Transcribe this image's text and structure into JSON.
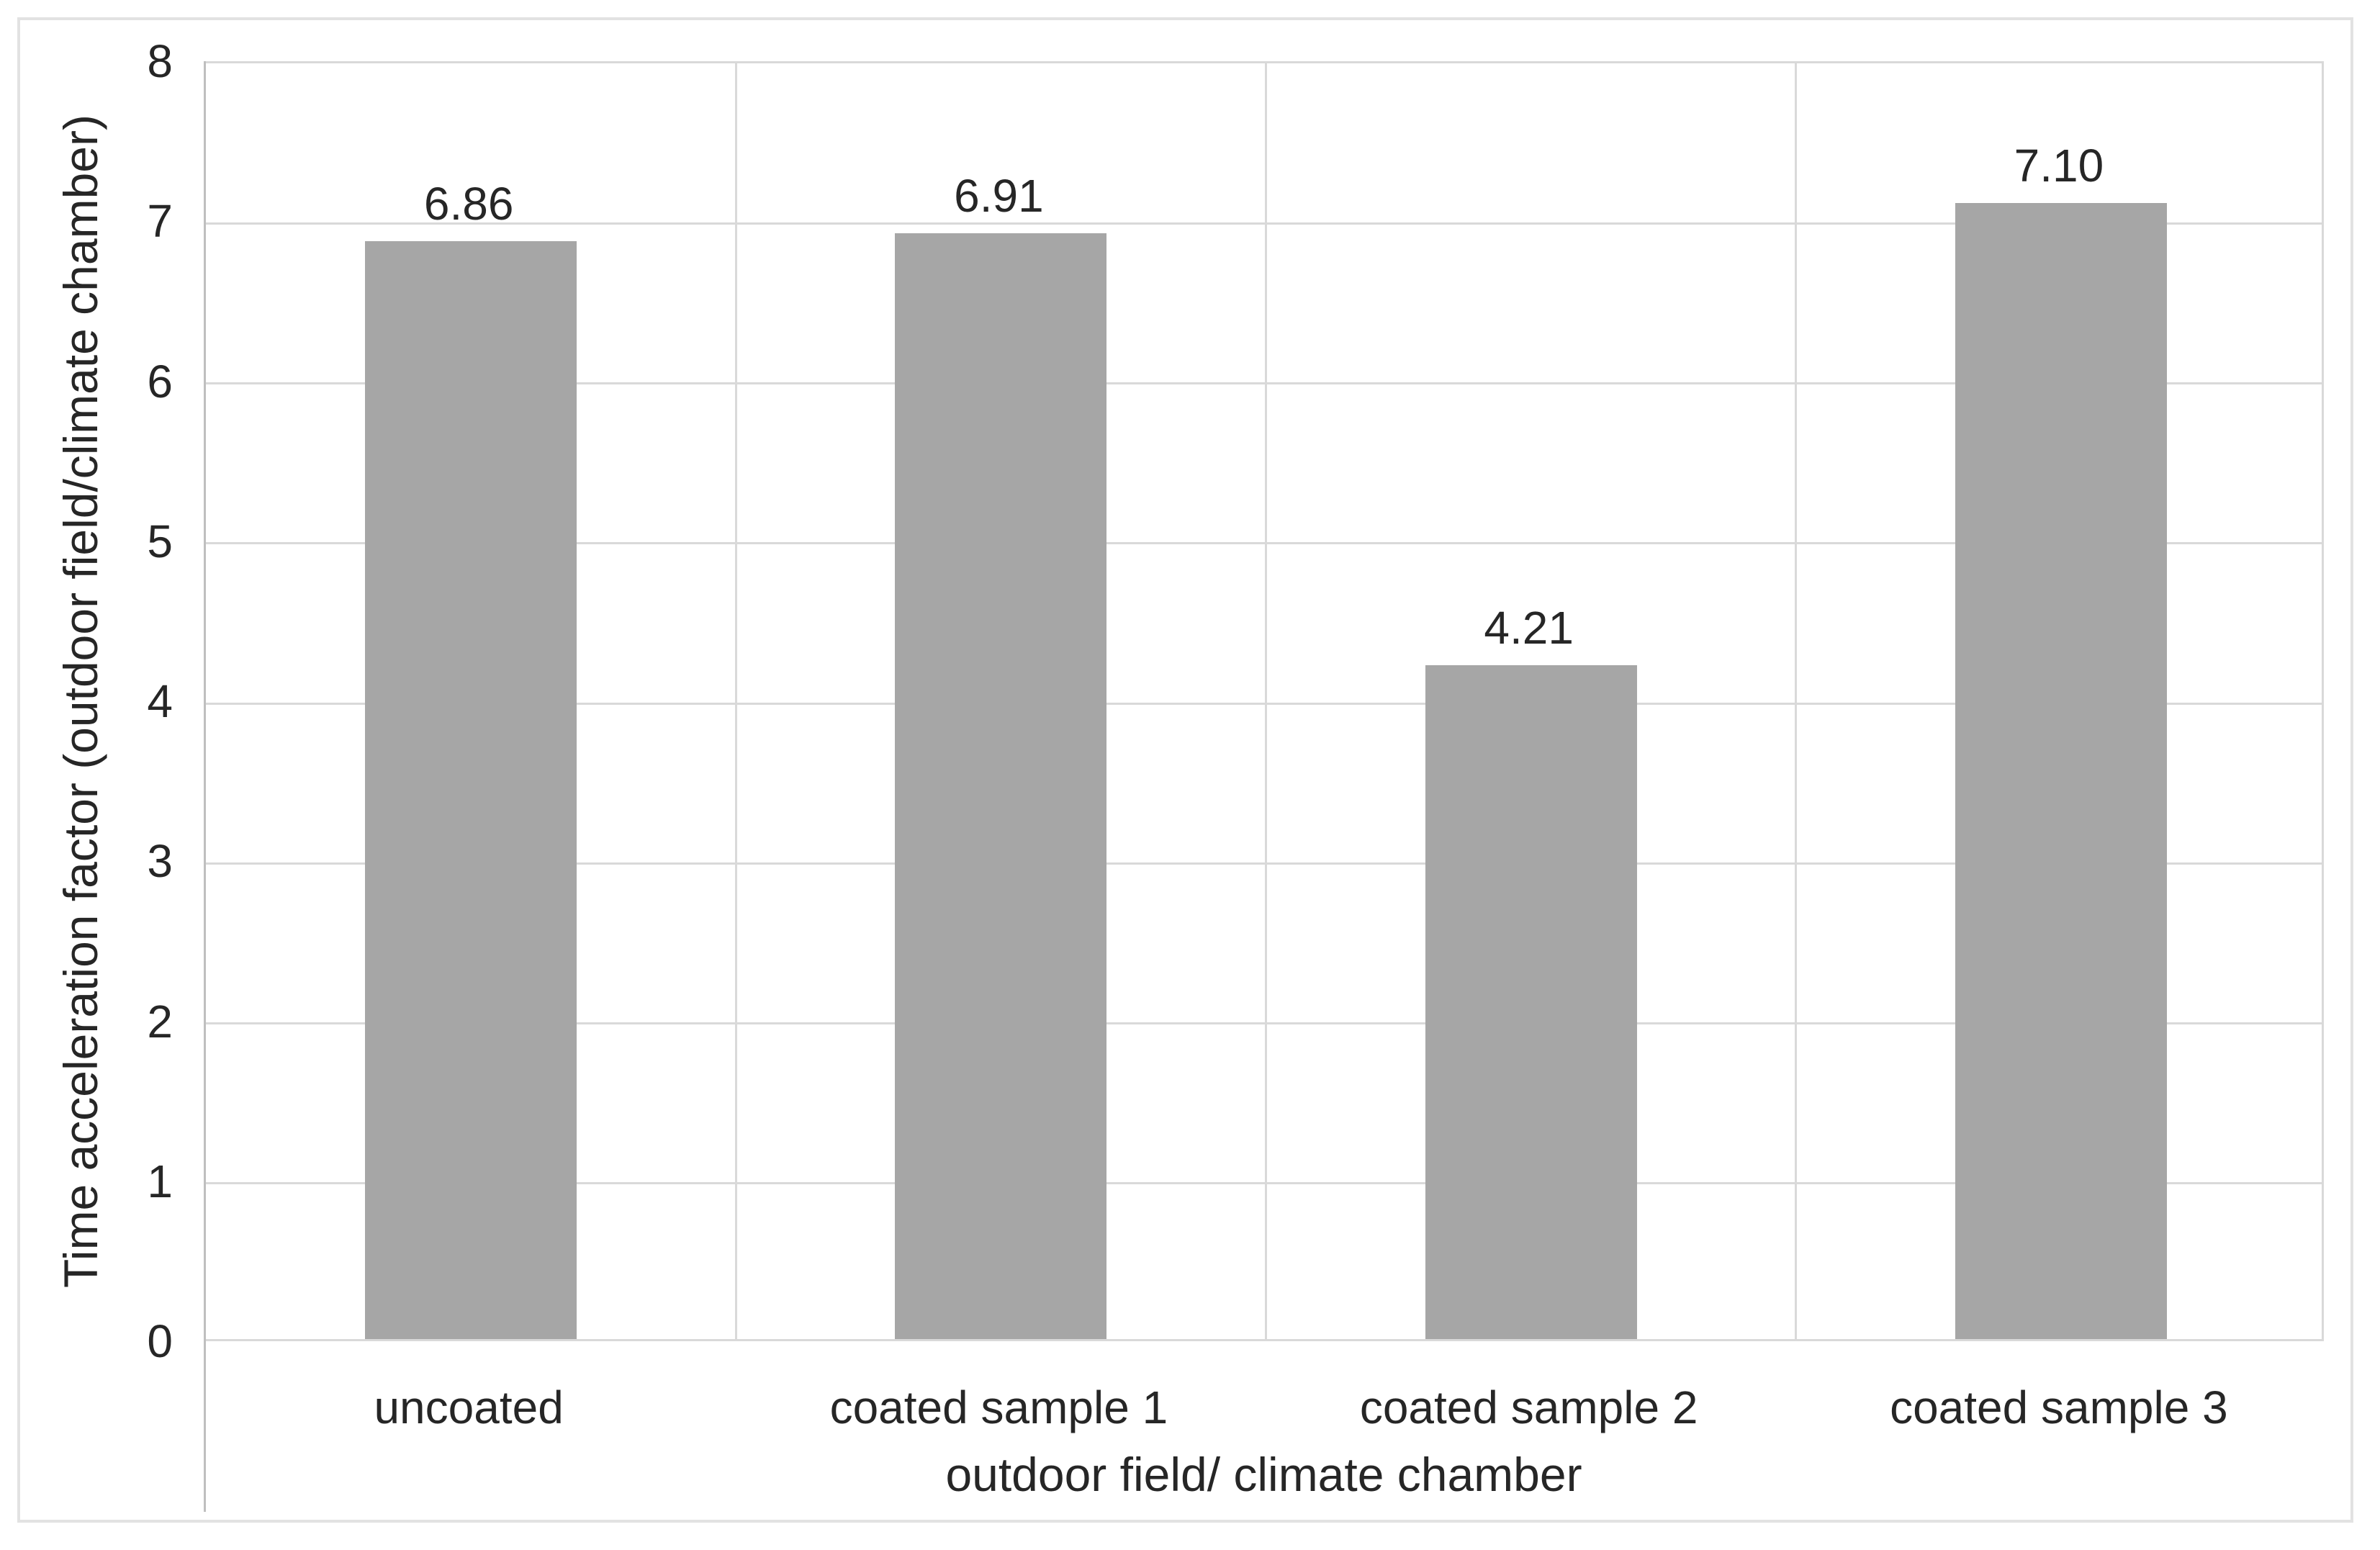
{
  "figure": {
    "background_color": "#ffffff",
    "frame_border_color": "#e2e2e2"
  },
  "chart_data": {
    "type": "bar",
    "title": "",
    "categories": [
      "uncoated",
      "coated sample 1",
      "coated sample 2",
      "coated sample 3"
    ],
    "values": [
      6.86,
      6.91,
      4.21,
      7.1
    ],
    "data_labels": [
      "6.86",
      "6.91",
      "4.21",
      "7.10"
    ],
    "xlabel": "outdoor field/ climate chamber",
    "ylabel": "Time acceleration factor (outdoor field/climate chamber)",
    "ylim": [
      0,
      8
    ],
    "yticks": [
      0,
      1,
      2,
      3,
      4,
      5,
      6,
      7,
      8
    ],
    "legend": "none",
    "grid": "horizontal major gridlines + vertical category separators, plot area fully bordered",
    "bar_color": "#a6a6a6",
    "gridline_color": "#d9d9d9",
    "axis_line_color": "#bfbfbf",
    "text_color": "#262626"
  }
}
